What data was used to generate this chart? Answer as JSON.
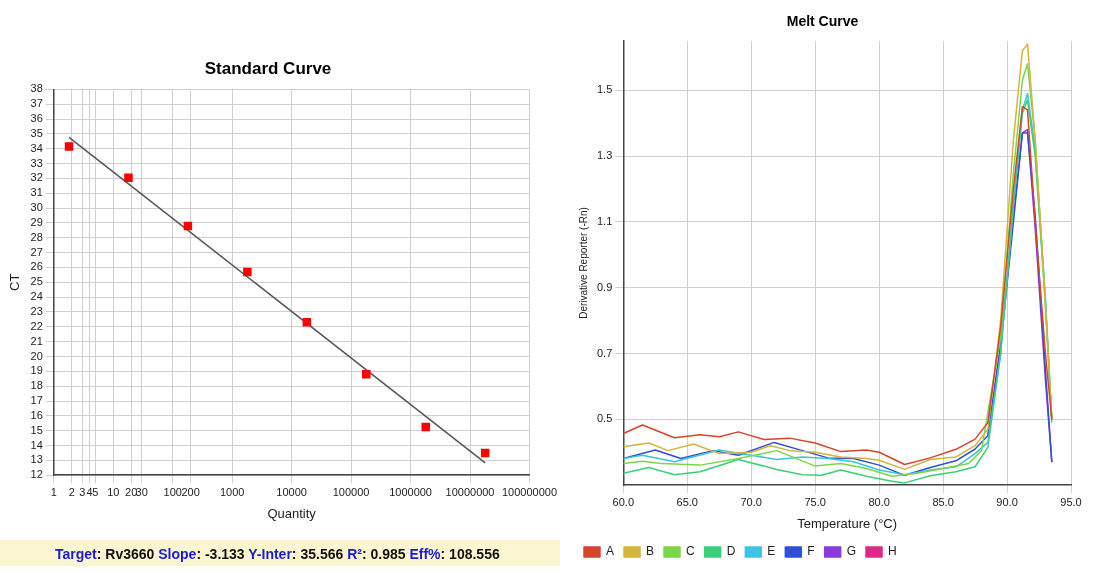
{
  "chart_data": [
    {
      "type": "scatter",
      "title": "Standard Curve",
      "xlabel": "Quantity",
      "ylabel": "CT",
      "log": "x",
      "grid": true,
      "legend": false,
      "xlim": [
        1,
        100000000
      ],
      "xticks": [
        1,
        2,
        3,
        4,
        5,
        10,
        20,
        30,
        100,
        200,
        1000,
        10000,
        100000,
        1000000,
        10000000,
        100000000
      ],
      "ylim": [
        12,
        38
      ],
      "yticks": [
        12,
        13,
        14,
        15,
        16,
        17,
        18,
        19,
        20,
        21,
        22,
        23,
        24,
        25,
        26,
        27,
        28,
        29,
        30,
        31,
        32,
        33,
        34,
        35,
        36,
        37,
        38
      ],
      "series": [
        {
          "marker": "square",
          "color": "#ff0000",
          "x": [
            1.8,
            18,
            180,
            1800,
            18000,
            180000,
            1800000,
            18000000
          ],
          "values": [
            34.15,
            32.05,
            28.8,
            25.7,
            22.3,
            18.8,
            15.25,
            13.5
          ]
        },
        {
          "type": "line",
          "marker": "none",
          "color": "#555555",
          "x": [
            1.8,
            18000000
          ],
          "values": [
            34.77,
            12.83
          ]
        }
      ],
      "annotations": [
        "Target: Rv3660 Slope: -3.133 Y-Inter: 35.566 R²: 0.985 Eff%: 108.556"
      ]
    },
    {
      "type": "line",
      "title": "Melt Curve",
      "xlabel": "Temperature (°C)",
      "ylabel": "Derivative Reporter (-Rn)",
      "grid": true,
      "legend": "bottom",
      "marker": "none",
      "xlim": [
        60,
        95
      ],
      "xticks": [
        {
          "value": 60,
          "label": "60.0"
        },
        {
          "value": 65,
          "label": "65.0"
        },
        {
          "value": 70,
          "label": "70.0"
        },
        {
          "value": 75,
          "label": "75.0"
        },
        {
          "value": 80,
          "label": "80.0"
        },
        {
          "value": 85,
          "label": "85.0"
        },
        {
          "value": 90,
          "label": "90.0"
        },
        {
          "value": 95,
          "label": "95.0"
        }
      ],
      "ylim": [
        0.3,
        1.65
      ],
      "yticks": [
        0.5,
        0.7,
        0.9,
        1.1,
        1.3,
        1.5
      ],
      "series": [
        {
          "name": "A",
          "color": "#d9442c",
          "x": [
            60,
            61.5,
            64,
            66,
            67.5,
            69,
            71,
            73,
            75,
            77,
            79,
            80,
            82,
            84,
            86,
            87.5,
            88.5,
            89.5,
            90.5,
            91.2,
            91.6,
            92.2,
            93,
            93.5
          ],
          "values": [
            0.457,
            0.483,
            0.444,
            0.453,
            0.447,
            0.462,
            0.439,
            0.443,
            0.428,
            0.402,
            0.407,
            0.4,
            0.363,
            0.383,
            0.409,
            0.44,
            0.49,
            0.78,
            1.2,
            1.45,
            1.44,
            1.1,
            0.7,
            0.5
          ]
        },
        {
          "name": "B",
          "color": "#d4b43a",
          "x": [
            60,
            62,
            63.5,
            65.5,
            67.5,
            70,
            71.5,
            73,
            75,
            77,
            79,
            80,
            82,
            84,
            86,
            87.5,
            88.5,
            89.5,
            90.5,
            91.2,
            91.6,
            92.2,
            93,
            93.5
          ],
          "values": [
            0.417,
            0.428,
            0.405,
            0.425,
            0.396,
            0.4,
            0.42,
            0.405,
            0.4,
            0.386,
            0.381,
            0.376,
            0.348,
            0.378,
            0.386,
            0.42,
            0.47,
            0.8,
            1.35,
            1.62,
            1.64,
            1.35,
            0.85,
            0.5
          ]
        },
        {
          "name": "C",
          "color": "#7bd64a",
          "x": [
            60,
            61.5,
            63,
            66,
            69,
            72,
            75,
            77,
            79,
            81,
            83,
            85,
            87,
            88,
            89.5,
            90.5,
            91.2,
            91.6,
            92.2,
            93,
            93.5
          ],
          "values": [
            0.366,
            0.373,
            0.366,
            0.361,
            0.381,
            0.405,
            0.358,
            0.366,
            0.351,
            0.327,
            0.336,
            0.351,
            0.366,
            0.405,
            0.75,
            1.25,
            1.53,
            1.58,
            1.35,
            0.85,
            0.5
          ]
        },
        {
          "name": "D",
          "color": "#3ccf7a",
          "x": [
            60,
            62,
            64,
            66,
            69,
            72,
            74,
            75.5,
            77,
            79,
            81,
            82,
            84,
            86,
            87.5,
            88.5,
            89.5,
            90.5,
            91.2,
            91.6,
            92.2,
            93,
            93.5
          ],
          "values": [
            0.336,
            0.354,
            0.332,
            0.341,
            0.378,
            0.348,
            0.332,
            0.33,
            0.346,
            0.327,
            0.312,
            0.307,
            0.329,
            0.341,
            0.356,
            0.415,
            0.7,
            1.15,
            1.43,
            1.47,
            1.3,
            0.85,
            0.5
          ]
        },
        {
          "name": "E",
          "color": "#3cc4e0",
          "x": [
            60,
            61.5,
            64,
            67.5,
            70,
            72,
            74,
            76,
            78,
            80,
            82,
            84,
            86,
            87.5,
            88.5,
            89.5,
            90.5,
            91.2,
            91.6,
            92.2,
            93,
            93.5
          ],
          "values": [
            0.381,
            0.391,
            0.371,
            0.407,
            0.391,
            0.378,
            0.386,
            0.381,
            0.371,
            0.346,
            0.332,
            0.346,
            0.356,
            0.396,
            0.43,
            0.7,
            1.15,
            1.44,
            1.49,
            1.32,
            0.87,
            0.49
          ]
        },
        {
          "name": "F",
          "color": "#3050d8",
          "x": [
            60,
            62.5,
            64.5,
            67,
            69,
            71.8,
            74,
            76,
            78,
            80,
            82,
            84,
            86,
            87.5,
            88.5,
            89.5,
            90.5,
            91.2,
            91.6,
            92.2,
            93,
            93.5
          ],
          "values": [
            0.381,
            0.407,
            0.381,
            0.405,
            0.391,
            0.43,
            0.405,
            0.383,
            0.381,
            0.361,
            0.33,
            0.354,
            0.374,
            0.41,
            0.45,
            0.72,
            1.1,
            1.37,
            1.37,
            1.12,
            0.65,
            0.37
          ]
        },
        {
          "name": "G",
          "color": "#8a3ad8",
          "x": [
            88.5,
            89.5,
            90.5,
            91.2,
            91.6,
            92.2,
            93,
            93.5
          ],
          "values": [
            0.45,
            0.73,
            1.12,
            1.37,
            1.38,
            1.08,
            0.62,
            0.37
          ]
        },
        {
          "name": "H",
          "color": "#e0288a"
        }
      ]
    }
  ]
}
